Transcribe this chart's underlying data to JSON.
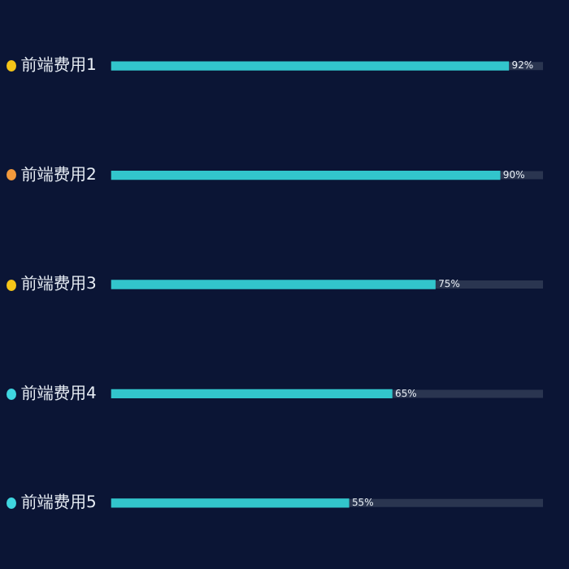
{
  "chart_data": {
    "type": "bar",
    "orientation": "horizontal",
    "categories": [
      "前端费用1",
      "前端费用2",
      "前端费用3",
      "前端费用4",
      "前端费用5"
    ],
    "values": [
      92,
      90,
      75,
      65,
      55
    ],
    "color": "#32c5cc",
    "xlim": [
      0,
      100
    ],
    "tick_labels": "y",
    "value_labels": [
      "92%",
      "90%",
      "75%",
      "65%",
      "55%"
    ]
  }
}
